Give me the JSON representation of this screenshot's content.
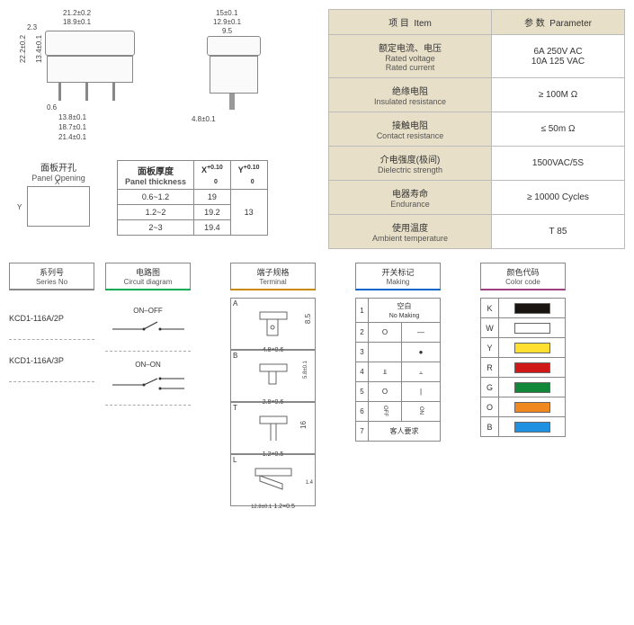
{
  "drawing1": {
    "w1": "21.2±0.2",
    "w2": "18.9±0.1",
    "h1": "2.3",
    "h2": "22.2±0.2",
    "h3": "13.4±0.1",
    "pin": "0.6",
    "p1": "13.8±0.1",
    "p2": "18.7±0.1",
    "p3": "21.4±0.1"
  },
  "drawing2": {
    "w1": "15±0.1",
    "w2": "12.9±0.1",
    "w3": "9.5",
    "pin": "4.8±0.1"
  },
  "spec": {
    "hdr_item_cn": "项 目",
    "hdr_item_en": "Item",
    "hdr_param_cn": "参 数",
    "hdr_param_en": "Parameter",
    "rows": [
      {
        "cn": "额定电流、电压",
        "en1": "Rated voltage",
        "en2": "Rated current",
        "val1": "6A   250V AC",
        "val2": "10A 125 VAC"
      },
      {
        "cn": "绝缘电阻",
        "en": "Insulated resistance",
        "val": "≥ 100M Ω"
      },
      {
        "cn": "接触电阻",
        "en": "Contact resistance",
        "val": "≤ 50m Ω"
      },
      {
        "cn": "介电强度(极间)",
        "en": "Dielectric strength",
        "val": "1500VAC/5S"
      },
      {
        "cn": "电器寿命",
        "en": "Endurance",
        "val": "≥ 10000 Cycles"
      },
      {
        "cn": "使用温度",
        "en": "Ambient temperature",
        "val": "T 85"
      }
    ]
  },
  "panel": {
    "title_cn": "面板开孔",
    "title_en": "Panel Opening",
    "x_label": "X",
    "y_label": "Y",
    "thick_cn": "面板厚度",
    "thick_en": "Panel thickness",
    "x_hdr": "X",
    "x_tol": "+0.10",
    "x_tol2": "0",
    "y_hdr": "Y",
    "y_tol": "+0.10",
    "y_tol2": "0",
    "rows": [
      {
        "t": "0.6~1.2",
        "x": "19"
      },
      {
        "t": "1.2~2",
        "x": "19.2"
      },
      {
        "t": "2~3",
        "x": "19.4"
      }
    ],
    "y_val": "13"
  },
  "headers": {
    "series_cn": "系列号",
    "series_en": "Series No",
    "circuit_cn": "电路图",
    "circuit_en": "Circuit diagram",
    "terminal_cn": "端子规格",
    "terminal_en": "Terminal",
    "making_cn": "开关标记",
    "making_en": "Making",
    "color_cn": "颜色代码",
    "color_en": "Color code"
  },
  "series": [
    {
      "model": "KCD1-116A/2P"
    },
    {
      "model": "KCD1-116A/3P"
    }
  ],
  "circuits": [
    {
      "label": "ON–OFF"
    },
    {
      "label": "ON–ON"
    }
  ],
  "terminals": [
    {
      "l": "A",
      "d1": "8.5",
      "d2": "4.8×0.6"
    },
    {
      "l": "B",
      "d1": "5.8±0.1",
      "d2": "2.8×0.6"
    },
    {
      "l": "T",
      "d1": "16",
      "d2": "1.2×0.5"
    },
    {
      "l": "L",
      "d1": "1.4",
      "d2": "12.8±0.1",
      "d3": "1.2×0.5"
    }
  ],
  "making": [
    {
      "n": "1",
      "cn": "空白",
      "en": "No Making"
    },
    {
      "n": "2",
      "a": "O",
      "b": "—"
    },
    {
      "n": "3",
      "a": "",
      "b": "●"
    },
    {
      "n": "4",
      "a": "⫫",
      "b": "⫠"
    },
    {
      "n": "5",
      "a": "O",
      "b": "|"
    },
    {
      "n": "6",
      "a": "OFF",
      "b": "ON",
      "rot": true
    },
    {
      "n": "7",
      "txt": "客人要求"
    }
  ],
  "colors": [
    {
      "k": "K",
      "hex": "#1a1410"
    },
    {
      "k": "W",
      "hex": "#ffffff"
    },
    {
      "k": "Y",
      "hex": "#ffe030"
    },
    {
      "k": "R",
      "hex": "#d01818"
    },
    {
      "k": "G",
      "hex": "#108838"
    },
    {
      "k": "O",
      "hex": "#f08820"
    },
    {
      "k": "B",
      "hex": "#2090e0"
    }
  ]
}
